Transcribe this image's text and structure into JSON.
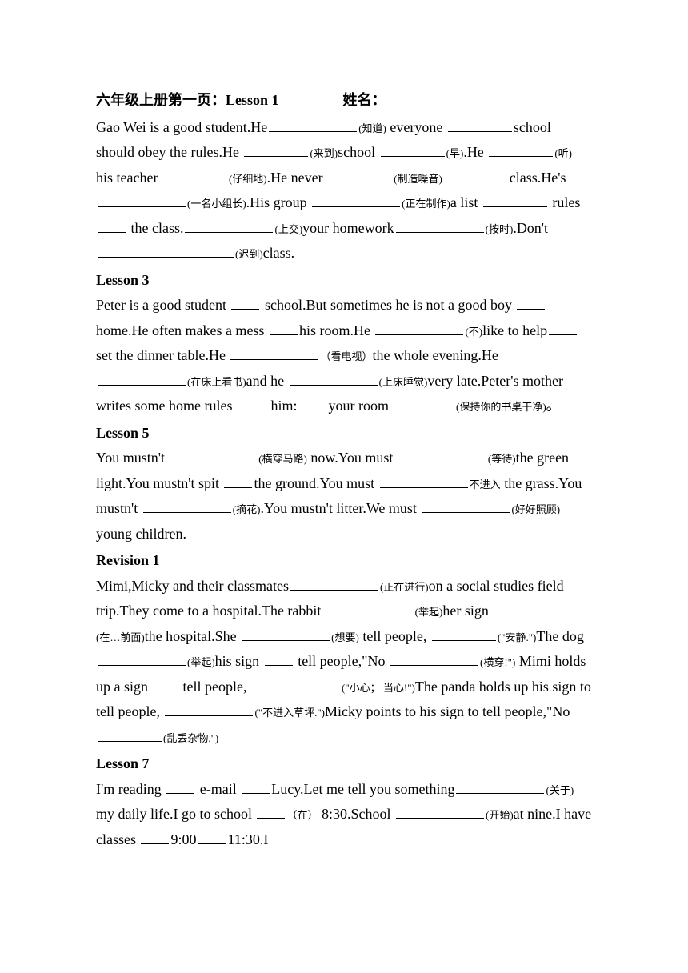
{
  "heading": {
    "title_cn": "六年级上册第一页：",
    "lesson": "Lesson 1",
    "name_label": "姓名："
  },
  "lesson1": {
    "t1": "Gao Wei is a good student.He",
    "h1": "(知道)",
    "t2": " everyone ",
    "t3": "school should obey the rules.He ",
    "h2": "(来到)",
    "t4": "school ",
    "h3": "(早)",
    "t5": ".He ",
    "h4": "(听)",
    "t6": " his teacher ",
    "h5": "(仔细地)",
    "t7": ".He never ",
    "h6": "(制造噪音)",
    "t8": "class.He's ",
    "h7": "(一名小组长)",
    "t9": ".His group ",
    "h8": "(正在制作)",
    "t10": "a list ",
    "t11": " rules ",
    "t12": " the class.",
    "h9": "(上交)",
    "t13": "your homework",
    "h10": "(按时)",
    "t14": ".Don't ",
    "h11": "(迟到)",
    "t15": "class."
  },
  "lesson3": {
    "title": "Lesson 3",
    "t1": "Peter is a good student ",
    "t2": " school.But sometimes he is not a good boy ",
    "t3": "home.He often makes a mess ",
    "t4": "his room.He ",
    "h1": "(不)",
    "t5": "like to help",
    "t6": " set the dinner table.He ",
    "h2": "（看电视）",
    "t7": "the whole evening.He ",
    "h3": "(在床上看书)",
    "t8": "and he ",
    "h4": "(上床睡觉)",
    "t9": "very late.Peter's mother writes some home rules ",
    "t10": " him:",
    "t11": "your room",
    "h5": "(保持你的书桌干净)",
    "t12": "。"
  },
  "lesson5": {
    "title": "Lesson 5",
    "t1": "You mustn't",
    "h1": " (横穿马路)",
    "t2": " now.You must ",
    "h2": "(等待)",
    "t3": "the green light.You mustn't spit ",
    "t4": "the ground.You must ",
    "h3": "不进入",
    "t5": " the grass.You mustn't ",
    "h4": "(摘花)",
    "t6": ".You mustn't litter.We must ",
    "h5": "(好好照顾)",
    "t7": " young children."
  },
  "revision1": {
    "title": "Revision 1",
    "t1": "Mimi,Micky and their classmates",
    "h1": "(正在进行)",
    "t2": "on a social studies field trip.They come to a hospital.The rabbit",
    "h2": " (举起)",
    "t3": "her sign",
    "h3": "(在…前面)",
    "t4": "the hospital.She ",
    "h4": "(想要)",
    "t5": " tell people, ",
    "h5": "(\"安静.\")",
    "t6": "The dog ",
    "h6": "(举起)",
    "t7": "his sign ",
    "t8": " tell people,\"No ",
    "h7": "(横穿!\")",
    "t9": " Mimi holds up a sign",
    "t10": " tell people, ",
    "h8": "(\"小心； 当心!\")",
    "t11": "The panda holds up his sign to tell people, ",
    "h9": "(\"不进入草坪.\")",
    "t12": "Micky points to his sign to tell people,\"No",
    "h10": "(乱丢杂物.\")"
  },
  "lesson7": {
    "title": "Lesson 7",
    "t1": "I'm reading ",
    "t2": " e-mail ",
    "t3": "Lucy.Let me tell you something",
    "h1": "(关于)",
    "t4": " my daily life.I go to school ",
    "h2": "（在）",
    "t5": " 8:30.School ",
    "h3": "(开始)",
    "t6": "at nine.I have classes ",
    "t7": "9:00",
    "t8": "11:30.I"
  }
}
